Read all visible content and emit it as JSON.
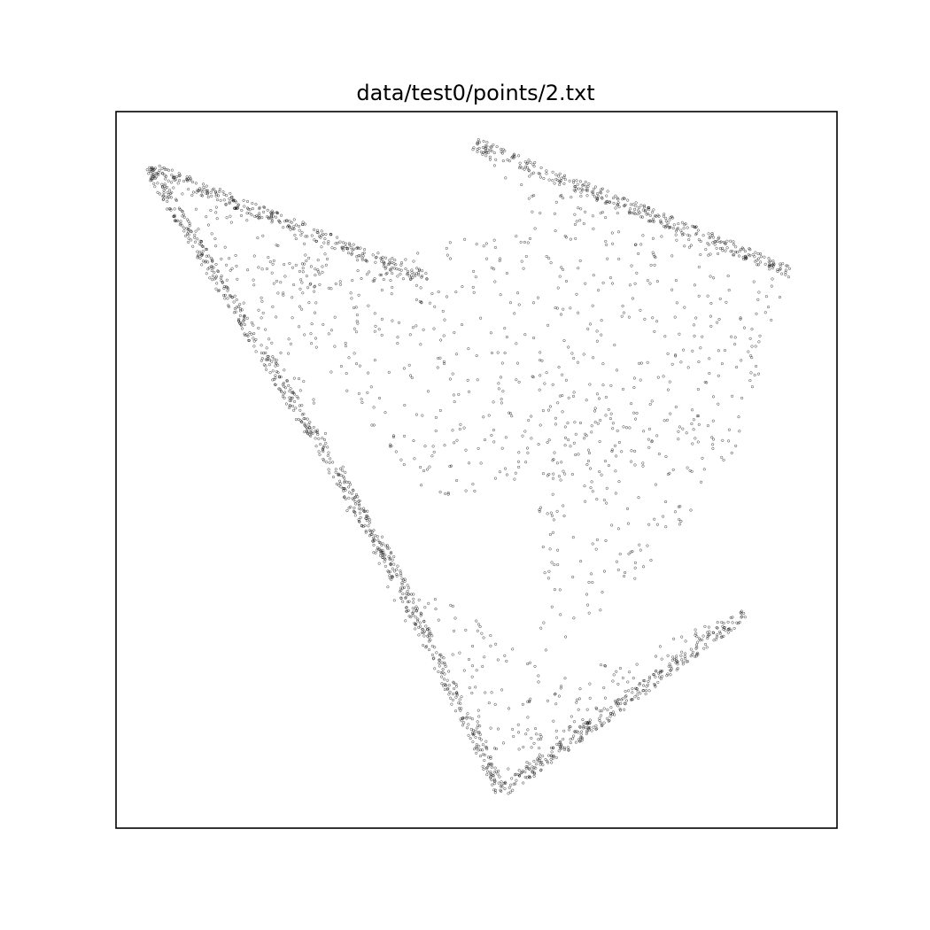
{
  "chart_data": {
    "type": "scatter",
    "title": "data/test0/points/2.txt",
    "xlabel": "",
    "ylabel": "",
    "axes": {
      "ticks": "none",
      "frame": true
    },
    "grid": false,
    "legend": "none",
    "marker": {
      "shape": "hollow-circle",
      "color": "#000000"
    },
    "xlim": [
      0,
      1
    ],
    "ylim": [
      0,
      1
    ],
    "description": "Dense point cloud forming folded triangular sheets; thousands of points. Values below are the point cloud outline vertices (normalized data units) used to regenerate the cloud.",
    "regions": [
      {
        "polygon": [
          [
            0.046,
            0.922
          ],
          [
            0.432,
            0.766
          ],
          [
            0.214,
            0.741
          ]
        ],
        "density": 0.55
      },
      {
        "polygon": [
          [
            0.046,
            0.922
          ],
          [
            0.214,
            0.741
          ],
          [
            0.37,
            0.39
          ]
        ],
        "density": 0.45
      },
      {
        "polygon": [
          [
            0.496,
            0.955
          ],
          [
            0.938,
            0.776
          ],
          [
            0.859,
            0.525
          ],
          [
            0.58,
            0.853
          ]
        ],
        "density": 0.35
      },
      {
        "polygon": [
          [
            0.214,
            0.741
          ],
          [
            0.58,
            0.853
          ],
          [
            0.859,
            0.525
          ],
          [
            0.43,
            0.46
          ]
        ],
        "density": 0.3
      },
      {
        "polygon": [
          [
            0.58,
            0.66
          ],
          [
            0.859,
            0.525
          ],
          [
            0.735,
            0.36
          ],
          [
            0.59,
            0.23
          ]
        ],
        "density": 0.3
      },
      {
        "polygon": [
          [
            0.37,
            0.39
          ],
          [
            0.59,
            0.22
          ],
          [
            0.535,
            0.05
          ],
          [
            0.27,
            0.52
          ]
        ],
        "density": 0.35
      },
      {
        "polygon": [
          [
            0.535,
            0.05
          ],
          [
            0.874,
            0.302
          ],
          [
            0.57,
            0.2
          ]
        ],
        "density": 0.55
      }
    ],
    "dense_edges": [
      [
        [
          0.046,
          0.922
        ],
        [
          0.37,
          0.39
        ]
      ],
      [
        [
          0.046,
          0.922
        ],
        [
          0.432,
          0.766
        ]
      ],
      [
        [
          0.496,
          0.955
        ],
        [
          0.938,
          0.776
        ]
      ],
      [
        [
          0.37,
          0.39
        ],
        [
          0.535,
          0.05
        ]
      ],
      [
        [
          0.535,
          0.05
        ],
        [
          0.874,
          0.302
        ]
      ]
    ]
  }
}
